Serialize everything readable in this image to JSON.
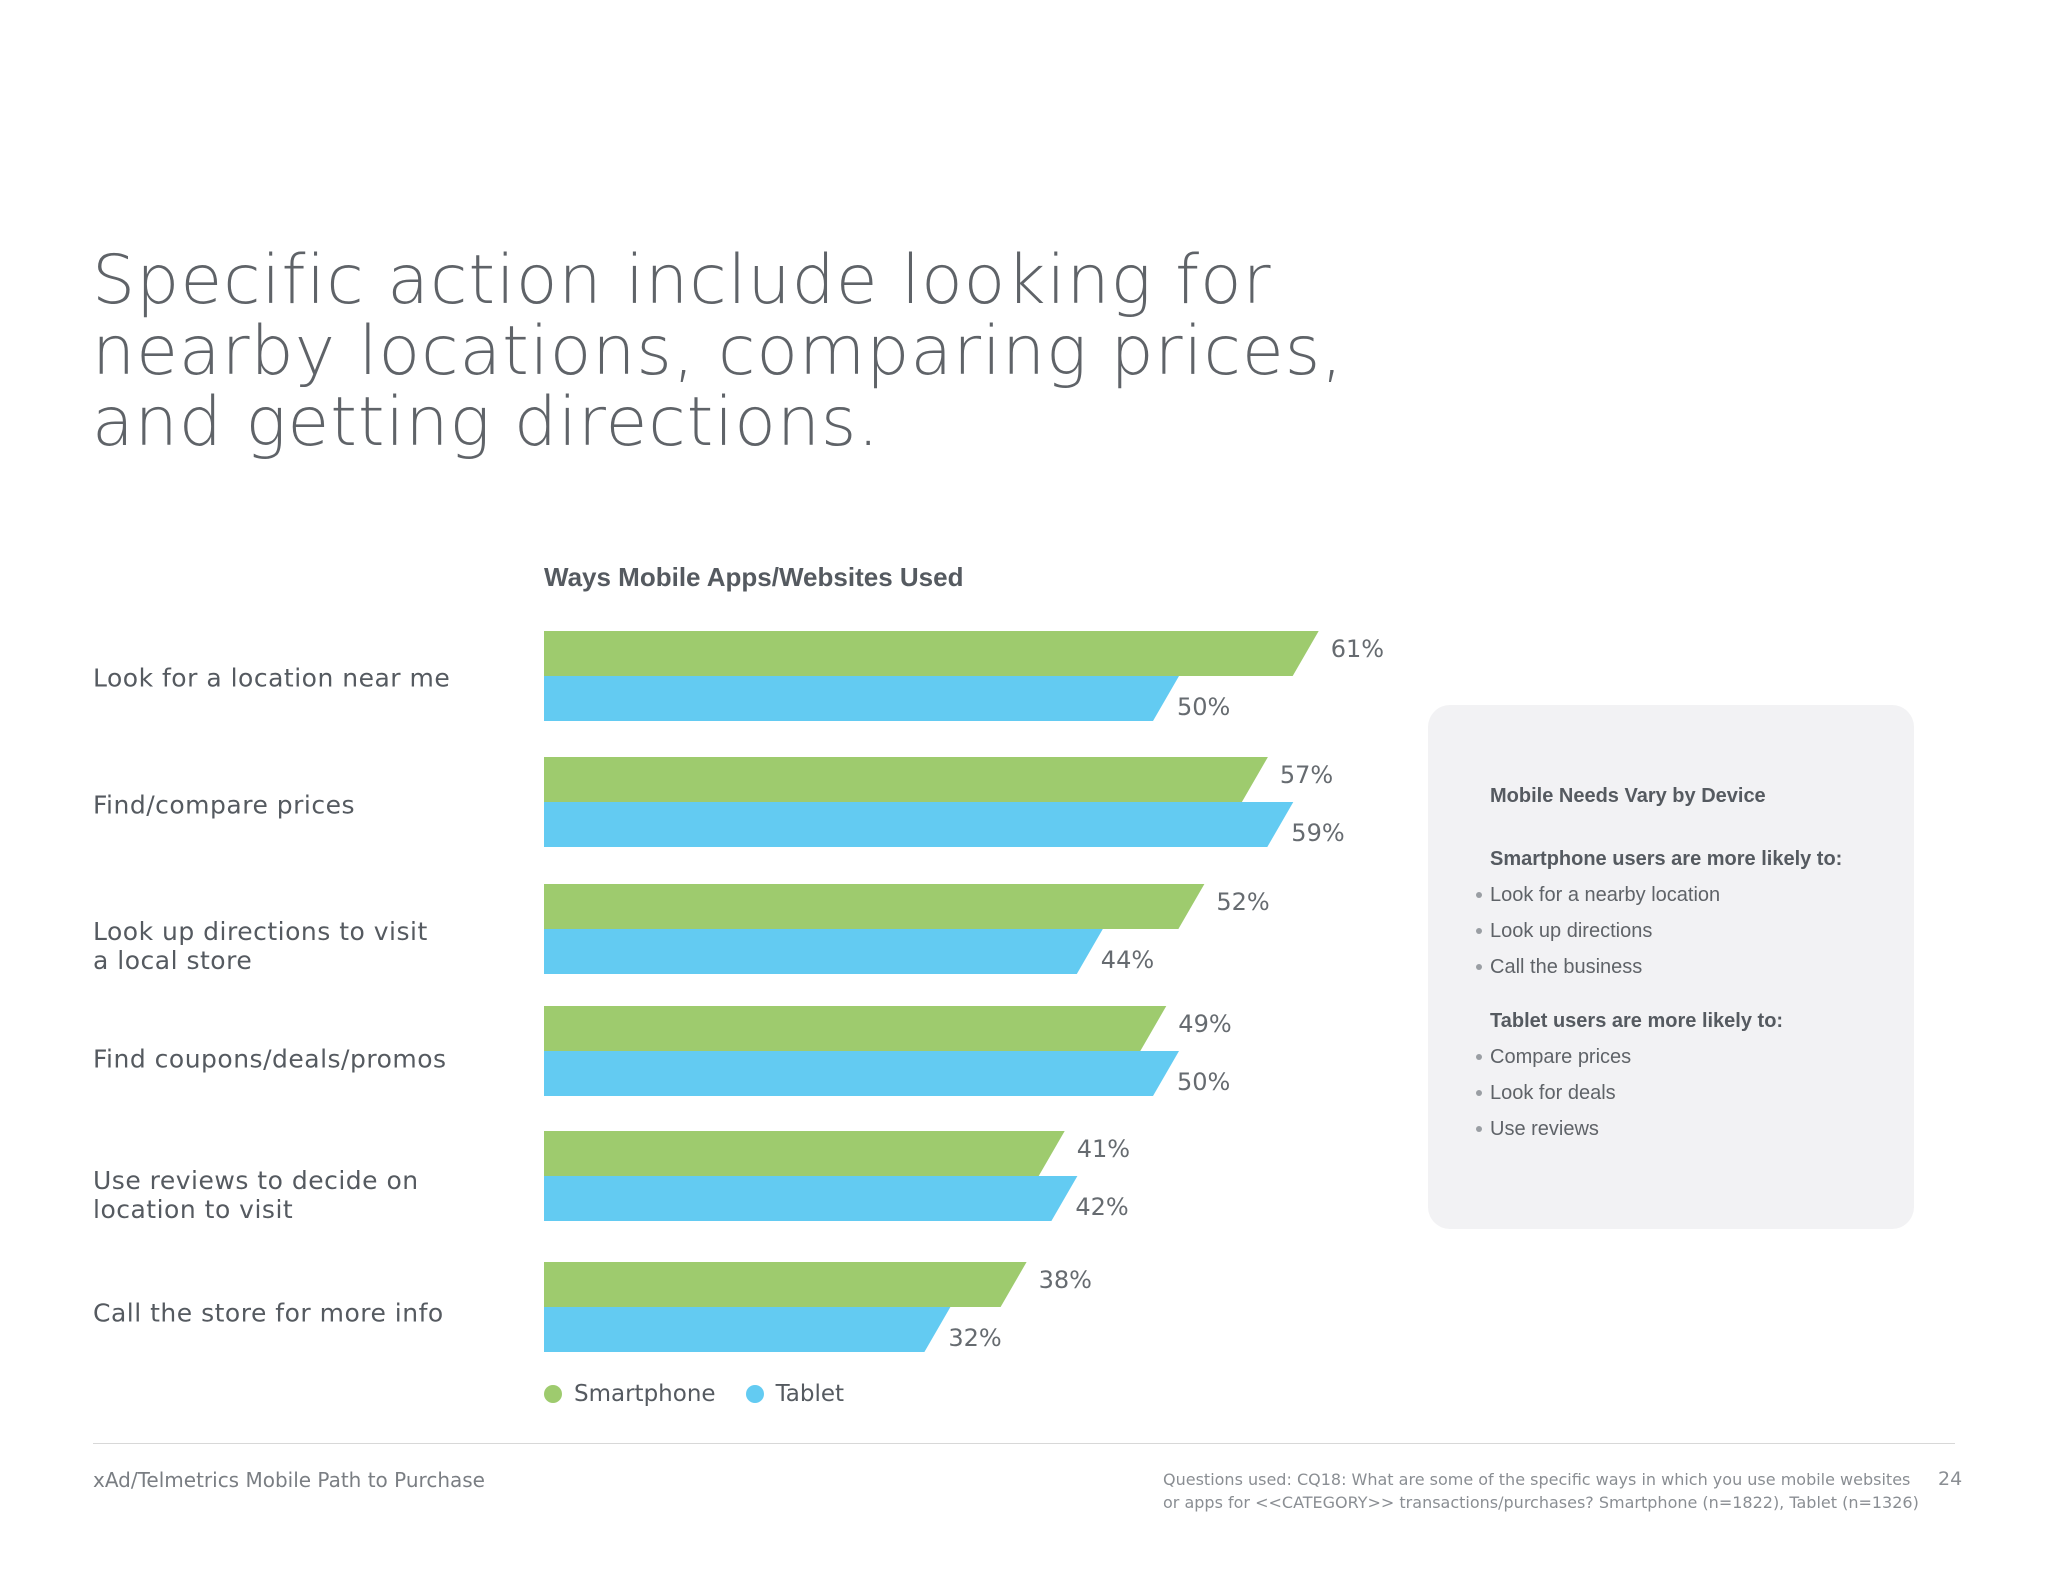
{
  "headline": "Specific action include looking for\nnearby locations, comparing prices,\nand getting directions.",
  "colors": {
    "smartphone": "#9ecb6e",
    "tablet": "#63cbf2",
    "panel": "#f2f2f4"
  },
  "chart_data": {
    "type": "bar",
    "orientation": "horizontal",
    "title": "Ways Mobile Apps/Websites Used",
    "categories": [
      "Look for a location near me",
      "Find/compare prices",
      "Look up directions to visit\na local store",
      "Find coupons/deals/promos",
      "Use reviews to decide on\nlocation to visit",
      "Call the store for more info"
    ],
    "series": [
      {
        "name": "Smartphone",
        "values": [
          61,
          57,
          52,
          49,
          41,
          38
        ],
        "labels": [
          "61%",
          "57%",
          "52%",
          "49%",
          "41%",
          "38%"
        ]
      },
      {
        "name": "Tablet",
        "values": [
          50,
          59,
          44,
          50,
          42,
          32
        ],
        "labels": [
          "50%",
          "59%",
          "44%",
          "50%",
          "42%",
          "32%"
        ]
      }
    ],
    "unit": "%",
    "legend": "bottom-left",
    "grid": false
  },
  "legend": {
    "smartphone": "Smartphone",
    "tablet": "Tablet"
  },
  "panel": {
    "title": "Mobile Needs Vary by Device",
    "smartphone_heading": "Smartphone users are more likely to:",
    "smartphone_items": [
      "Look for a nearby location",
      "Look up directions",
      "Call the business"
    ],
    "tablet_heading": "Tablet users are more likely to:",
    "tablet_items": [
      "Compare prices",
      "Look for deals",
      "Use reviews"
    ]
  },
  "footer": {
    "source": "xAd/Telmetrics Mobile Path to Purchase",
    "questions": "Questions used: CQ18: What are some of the specific ways in which you use mobile websites or apps for <<CATEGORY>> transactions/purchases? Smartphone (n=1822), Tablet (n=1326)",
    "page": "24"
  }
}
